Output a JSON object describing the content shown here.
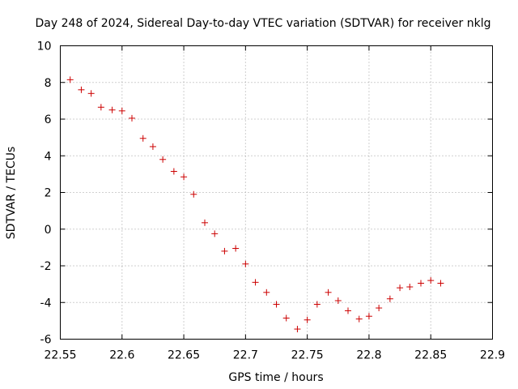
{
  "chart_data": {
    "type": "scatter",
    "title": "Day 248 of 2024, Sidereal Day-to-day VTEC variation (SDTVAR) for receiver nklg",
    "xlabel": "GPS time / hours",
    "ylabel": "SDTVAR / TECUs",
    "xlim": [
      22.55,
      22.9
    ],
    "ylim": [
      -6,
      10
    ],
    "xticks": [
      22.55,
      22.6,
      22.65,
      22.7,
      22.75,
      22.8,
      22.85,
      22.9
    ],
    "xtick_labels": [
      "22.55",
      "22.6",
      "22.65",
      "22.7",
      "22.75",
      "22.8",
      "22.85",
      "22.9"
    ],
    "yticks": [
      -6,
      -4,
      -2,
      0,
      2,
      4,
      6,
      8,
      10
    ],
    "ytick_labels": [
      "-6",
      "-4",
      "-2",
      "0",
      "2",
      "4",
      "6",
      "8",
      "10"
    ],
    "grid": true,
    "marker_color": "#cc0000",
    "series": [
      {
        "name": "nklg",
        "x": [
          22.558,
          22.567,
          22.575,
          22.583,
          22.592,
          22.6,
          22.608,
          22.617,
          22.625,
          22.633,
          22.642,
          22.65,
          22.658,
          22.667,
          22.675,
          22.683,
          22.692,
          22.7,
          22.708,
          22.717,
          22.725,
          22.733,
          22.742,
          22.75,
          22.758,
          22.767,
          22.775,
          22.783,
          22.792,
          22.8,
          22.808,
          22.817,
          22.825,
          22.833,
          22.842,
          22.85,
          22.858
        ],
        "y": [
          8.15,
          7.6,
          7.4,
          6.65,
          6.5,
          6.45,
          6.05,
          4.95,
          4.5,
          3.8,
          3.15,
          2.85,
          1.9,
          0.35,
          -0.25,
          -1.2,
          -1.05,
          -1.9,
          -2.9,
          -3.45,
          -4.1,
          -4.85,
          -5.45,
          -4.95,
          -4.1,
          -3.45,
          -3.9,
          -4.45,
          -4.9,
          -4.75,
          -4.3,
          -3.8,
          -3.2,
          -3.15,
          -2.95,
          -2.8,
          -2.95
        ]
      }
    ]
  }
}
